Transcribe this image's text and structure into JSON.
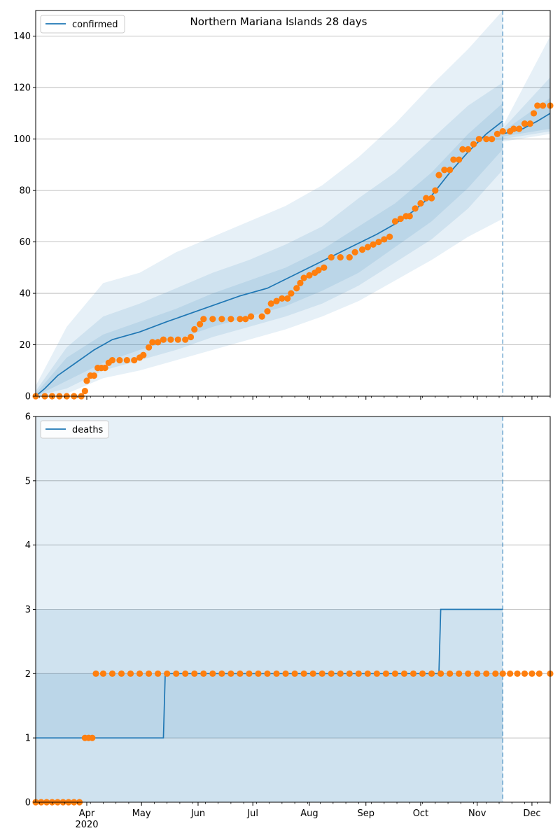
{
  "figure": {
    "title": "Northern Mariana Islands 28 days"
  },
  "x_axis": {
    "month_ticks": [
      {
        "label": "Apr",
        "day": 31
      },
      {
        "label": "May",
        "day": 61
      },
      {
        "label": "Jun",
        "day": 92
      },
      {
        "label": "Jul",
        "day": 122
      },
      {
        "label": "Aug",
        "day": 153
      },
      {
        "label": "Sep",
        "day": 184
      },
      {
        "label": "Oct",
        "day": 214
      },
      {
        "label": "Nov",
        "day": 245
      },
      {
        "label": "Dec",
        "day": 275
      }
    ],
    "year_label": "2020",
    "range": [
      3,
      285
    ],
    "forecast_start_day": 259
  },
  "chart_data": [
    {
      "type": "line",
      "panel": "top",
      "legend": [
        "confirmed"
      ],
      "legend_position": "upper-left",
      "ylim": [
        0,
        150
      ],
      "yticks": [
        0,
        20,
        40,
        60,
        80,
        100,
        120,
        140
      ],
      "grid": "horizontal",
      "colors": {
        "line": "#1f77b4",
        "observed": "#ff7f0e",
        "band": "#1f77b4"
      },
      "model_median": [
        [
          3,
          0
        ],
        [
          8,
          3
        ],
        [
          15,
          8
        ],
        [
          25,
          13
        ],
        [
          35,
          18
        ],
        [
          45,
          22
        ],
        [
          60,
          25
        ],
        [
          75,
          29
        ],
        [
          95,
          34
        ],
        [
          115,
          39
        ],
        [
          130,
          42
        ],
        [
          150,
          49
        ],
        [
          170,
          56
        ],
        [
          190,
          63
        ],
        [
          200,
          67
        ],
        [
          210,
          72
        ],
        [
          220,
          78
        ],
        [
          230,
          87
        ],
        [
          240,
          95
        ],
        [
          250,
          102
        ],
        [
          259,
          107
        ]
      ],
      "forecast_median": [
        [
          259,
          102
        ],
        [
          270,
          104
        ],
        [
          278,
          107
        ],
        [
          285,
          110
        ]
      ],
      "band_50": {
        "lower": [
          [
            3,
            0
          ],
          [
            20,
            6
          ],
          [
            40,
            13
          ],
          [
            60,
            18
          ],
          [
            80,
            22
          ],
          [
            100,
            27
          ],
          [
            120,
            31
          ],
          [
            140,
            35
          ],
          [
            160,
            41
          ],
          [
            180,
            48
          ],
          [
            200,
            58
          ],
          [
            220,
            68
          ],
          [
            240,
            81
          ],
          [
            259,
            96
          ]
        ],
        "upper": [
          [
            3,
            1
          ],
          [
            20,
            15
          ],
          [
            40,
            24
          ],
          [
            60,
            29
          ],
          [
            80,
            34
          ],
          [
            100,
            40
          ],
          [
            120,
            45
          ],
          [
            140,
            50
          ],
          [
            160,
            57
          ],
          [
            180,
            66
          ],
          [
            200,
            75
          ],
          [
            220,
            87
          ],
          [
            240,
            102
          ],
          [
            259,
            114
          ]
        ]
      },
      "band_80": {
        "lower": [
          [
            3,
            0
          ],
          [
            20,
            3
          ],
          [
            40,
            10
          ],
          [
            60,
            14
          ],
          [
            80,
            18
          ],
          [
            100,
            23
          ],
          [
            120,
            27
          ],
          [
            140,
            31
          ],
          [
            160,
            36
          ],
          [
            180,
            43
          ],
          [
            200,
            52
          ],
          [
            220,
            61
          ],
          [
            240,
            73
          ],
          [
            259,
            88
          ]
        ],
        "upper": [
          [
            3,
            2
          ],
          [
            20,
            19
          ],
          [
            40,
            31
          ],
          [
            60,
            36
          ],
          [
            80,
            42
          ],
          [
            100,
            48
          ],
          [
            120,
            53
          ],
          [
            140,
            59
          ],
          [
            160,
            66
          ],
          [
            180,
            77
          ],
          [
            200,
            87
          ],
          [
            220,
            100
          ],
          [
            240,
            113
          ],
          [
            259,
            122
          ]
        ]
      },
      "band_95": {
        "lower": [
          [
            3,
            0
          ],
          [
            20,
            1
          ],
          [
            40,
            7
          ],
          [
            60,
            10
          ],
          [
            80,
            14
          ],
          [
            100,
            18
          ],
          [
            120,
            22
          ],
          [
            140,
            26
          ],
          [
            160,
            31
          ],
          [
            180,
            37
          ],
          [
            200,
            45
          ],
          [
            220,
            53
          ],
          [
            240,
            62
          ],
          [
            259,
            69
          ]
        ],
        "upper": [
          [
            3,
            4
          ],
          [
            20,
            27
          ],
          [
            40,
            44
          ],
          [
            60,
            48
          ],
          [
            80,
            56
          ],
          [
            100,
            62
          ],
          [
            120,
            68
          ],
          [
            140,
            74
          ],
          [
            160,
            82
          ],
          [
            180,
            93
          ],
          [
            200,
            106
          ],
          [
            220,
            121
          ],
          [
            240,
            135
          ],
          [
            259,
            150
          ]
        ]
      },
      "forecast_band_50": {
        "lower": [
          [
            259,
            101
          ],
          [
            285,
            104
          ]
        ],
        "upper": [
          [
            259,
            103
          ],
          [
            285,
            116
          ]
        ]
      },
      "forecast_band_80": {
        "lower": [
          [
            259,
            100
          ],
          [
            285,
            103
          ]
        ],
        "upper": [
          [
            259,
            104
          ],
          [
            285,
            124
          ]
        ]
      },
      "forecast_band_95": {
        "lower": [
          [
            259,
            99
          ],
          [
            285,
            102
          ]
        ],
        "upper": [
          [
            259,
            105
          ],
          [
            285,
            140
          ]
        ]
      },
      "observed": [
        [
          3,
          0
        ],
        [
          8,
          0
        ],
        [
          12,
          0
        ],
        [
          16,
          0
        ],
        [
          20,
          0
        ],
        [
          24,
          0
        ],
        [
          28,
          0
        ],
        [
          30,
          2
        ],
        [
          31,
          6
        ],
        [
          33,
          8
        ],
        [
          35,
          8
        ],
        [
          37,
          11
        ],
        [
          39,
          11
        ],
        [
          41,
          11
        ],
        [
          43,
          13
        ],
        [
          45,
          14
        ],
        [
          49,
          14
        ],
        [
          53,
          14
        ],
        [
          57,
          14
        ],
        [
          60,
          15
        ],
        [
          62,
          16
        ],
        [
          65,
          19
        ],
        [
          67,
          21
        ],
        [
          70,
          21
        ],
        [
          73,
          22
        ],
        [
          77,
          22
        ],
        [
          81,
          22
        ],
        [
          85,
          22
        ],
        [
          88,
          23
        ],
        [
          90,
          26
        ],
        [
          93,
          28
        ],
        [
          95,
          30
        ],
        [
          100,
          30
        ],
        [
          105,
          30
        ],
        [
          110,
          30
        ],
        [
          115,
          30
        ],
        [
          118,
          30
        ],
        [
          121,
          31
        ],
        [
          127,
          31
        ],
        [
          130,
          33
        ],
        [
          132,
          36
        ],
        [
          135,
          37
        ],
        [
          138,
          38
        ],
        [
          141,
          38
        ],
        [
          143,
          40
        ],
        [
          146,
          42
        ],
        [
          148,
          44
        ],
        [
          150,
          46
        ],
        [
          153,
          47
        ],
        [
          156,
          48
        ],
        [
          158,
          49
        ],
        [
          161,
          50
        ],
        [
          165,
          54
        ],
        [
          170,
          54
        ],
        [
          175,
          54
        ],
        [
          178,
          56
        ],
        [
          182,
          57
        ],
        [
          185,
          58
        ],
        [
          188,
          59
        ],
        [
          191,
          60
        ],
        [
          194,
          61
        ],
        [
          197,
          62
        ],
        [
          200,
          68
        ],
        [
          203,
          69
        ],
        [
          206,
          70
        ],
        [
          208,
          70
        ],
        [
          211,
          73
        ],
        [
          214,
          75
        ],
        [
          217,
          77
        ],
        [
          220,
          77
        ],
        [
          222,
          80
        ],
        [
          224,
          86
        ],
        [
          227,
          88
        ],
        [
          230,
          88
        ],
        [
          232,
          92
        ],
        [
          235,
          92
        ],
        [
          237,
          96
        ],
        [
          240,
          96
        ],
        [
          243,
          98
        ],
        [
          246,
          100
        ],
        [
          250,
          100
        ],
        [
          253,
          100
        ],
        [
          256,
          102
        ],
        [
          259,
          103
        ],
        [
          263,
          103
        ],
        [
          265,
          104
        ],
        [
          268,
          104
        ],
        [
          271,
          106
        ],
        [
          274,
          106
        ],
        [
          276,
          110
        ],
        [
          278,
          113
        ],
        [
          281,
          113
        ],
        [
          285,
          113
        ]
      ]
    },
    {
      "type": "line",
      "panel": "bottom",
      "legend": [
        "deaths"
      ],
      "legend_position": "upper-left",
      "ylim": [
        0,
        6
      ],
      "yticks": [
        0,
        1,
        2,
        3,
        4,
        5,
        6
      ],
      "grid": "horizontal",
      "colors": {
        "line": "#1f77b4",
        "observed": "#ff7f0e",
        "band": "#1f77b4"
      },
      "model_median": [
        [
          3,
          1
        ],
        [
          73,
          1
        ],
        [
          74,
          2
        ],
        [
          224,
          2
        ],
        [
          225,
          3
        ],
        [
          259,
          3
        ]
      ],
      "forecast_median": [],
      "band_50": {
        "lower": [
          [
            3,
            1
          ],
          [
            259,
            1
          ]
        ],
        "upper": [
          [
            3,
            2
          ],
          [
            259,
            2
          ]
        ]
      },
      "band_80": {
        "lower": [
          [
            3,
            0
          ],
          [
            259,
            0
          ]
        ],
        "upper": [
          [
            3,
            3
          ],
          [
            259,
            3
          ]
        ]
      },
      "band_95": {
        "lower": [
          [
            3,
            0
          ],
          [
            259,
            0
          ]
        ],
        "upper": [
          [
            3,
            6
          ],
          [
            259,
            6
          ]
        ]
      },
      "observed": [
        [
          3,
          0
        ],
        [
          6,
          0
        ],
        [
          9,
          0
        ],
        [
          12,
          0
        ],
        [
          15,
          0
        ],
        [
          18,
          0
        ],
        [
          21,
          0
        ],
        [
          24,
          0
        ],
        [
          27,
          0
        ],
        [
          30,
          1
        ],
        [
          32,
          1
        ],
        [
          34,
          1
        ],
        [
          36,
          2
        ],
        [
          40,
          2
        ],
        [
          45,
          2
        ],
        [
          50,
          2
        ],
        [
          55,
          2
        ],
        [
          60,
          2
        ],
        [
          65,
          2
        ],
        [
          70,
          2
        ],
        [
          75,
          2
        ],
        [
          80,
          2
        ],
        [
          85,
          2
        ],
        [
          90,
          2
        ],
        [
          95,
          2
        ],
        [
          100,
          2
        ],
        [
          105,
          2
        ],
        [
          110,
          2
        ],
        [
          115,
          2
        ],
        [
          120,
          2
        ],
        [
          125,
          2
        ],
        [
          130,
          2
        ],
        [
          135,
          2
        ],
        [
          140,
          2
        ],
        [
          145,
          2
        ],
        [
          150,
          2
        ],
        [
          155,
          2
        ],
        [
          160,
          2
        ],
        [
          165,
          2
        ],
        [
          170,
          2
        ],
        [
          175,
          2
        ],
        [
          180,
          2
        ],
        [
          185,
          2
        ],
        [
          190,
          2
        ],
        [
          195,
          2
        ],
        [
          200,
          2
        ],
        [
          205,
          2
        ],
        [
          210,
          2
        ],
        [
          215,
          2
        ],
        [
          220,
          2
        ],
        [
          225,
          2
        ],
        [
          230,
          2
        ],
        [
          235,
          2
        ],
        [
          240,
          2
        ],
        [
          245,
          2
        ],
        [
          250,
          2
        ],
        [
          255,
          2
        ],
        [
          259,
          2
        ],
        [
          263,
          2
        ],
        [
          267,
          2
        ],
        [
          271,
          2
        ],
        [
          275,
          2
        ],
        [
          279,
          2
        ],
        [
          285,
          2
        ]
      ]
    }
  ]
}
